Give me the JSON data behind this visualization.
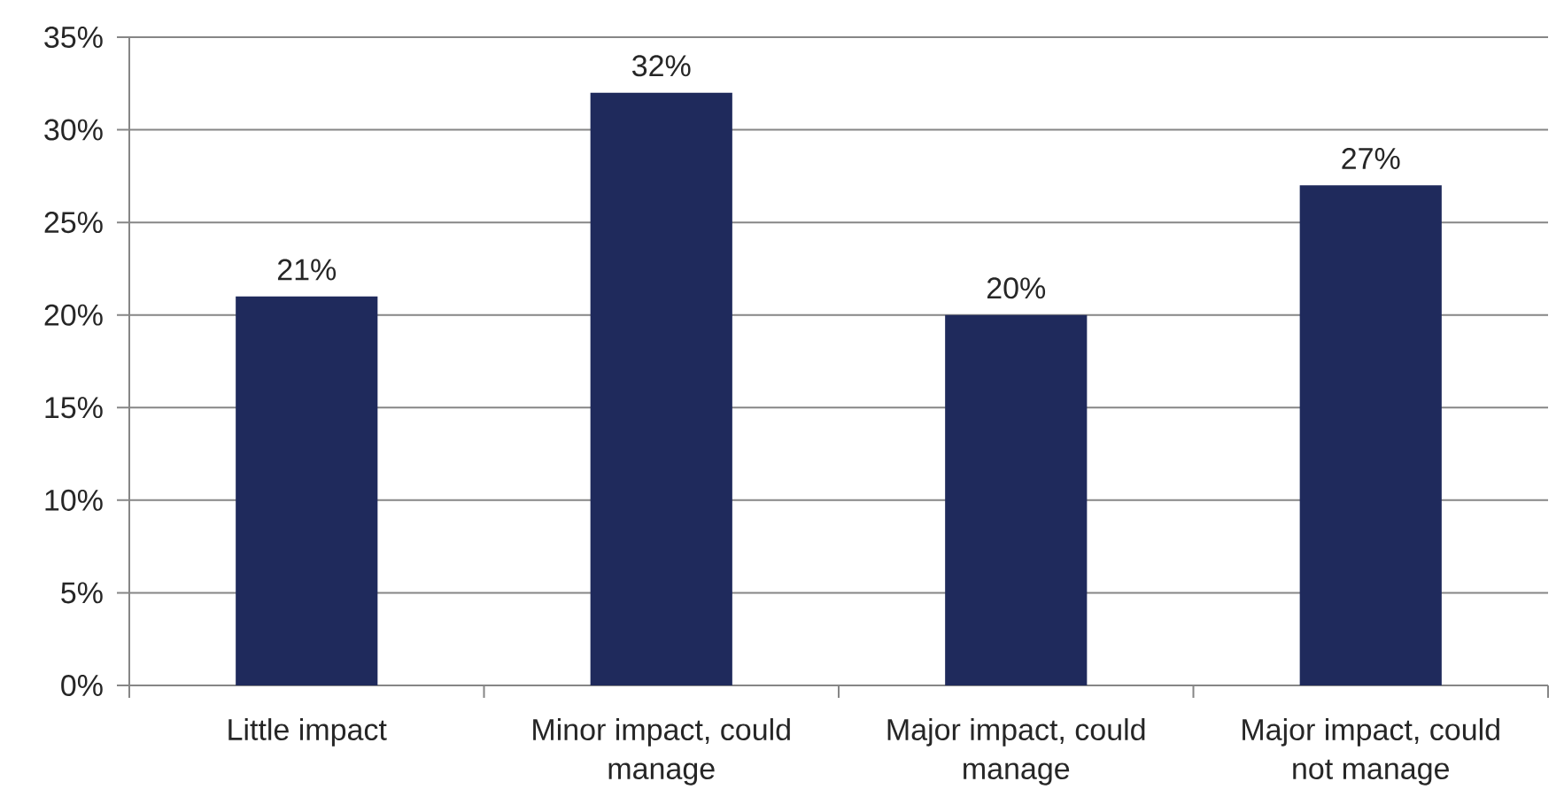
{
  "chart_data": {
    "type": "bar",
    "categories": [
      "Little impact",
      "Minor impact, could manage",
      "Major impact, could manage",
      "Major impact, could not manage"
    ],
    "values": [
      21,
      32,
      20,
      27
    ],
    "value_labels": [
      "21%",
      "32%",
      "20%",
      "27%"
    ],
    "color": "#1f2a5c",
    "ylim": [
      0,
      35
    ],
    "yticks": [
      {
        "value": 0,
        "label": "0%"
      },
      {
        "value": 5,
        "label": "5%"
      },
      {
        "value": 10,
        "label": "10%"
      },
      {
        "value": 15,
        "label": "15%"
      },
      {
        "value": 20,
        "label": "20%"
      },
      {
        "value": 25,
        "label": "25%"
      },
      {
        "value": 30,
        "label": "30%"
      },
      {
        "value": 35,
        "label": "35%"
      }
    ],
    "grid": "y"
  }
}
